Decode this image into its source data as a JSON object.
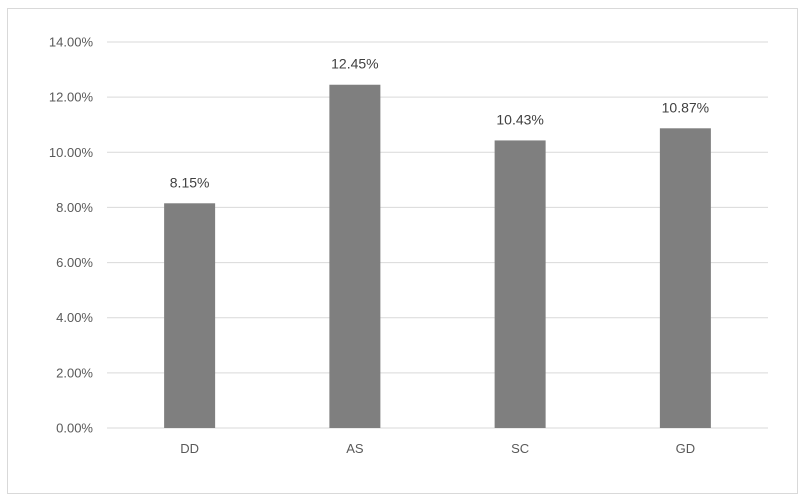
{
  "chart_data": {
    "type": "bar",
    "categories": [
      "DD",
      "AS",
      "SC",
      "GD"
    ],
    "values": [
      8.15,
      12.45,
      10.43,
      10.87
    ],
    "data_labels": [
      "8.15%",
      "12.45%",
      "10.43%",
      "10.87%"
    ],
    "y_ticks": [
      0,
      2,
      4,
      6,
      8,
      10,
      12,
      14
    ],
    "y_tick_labels": [
      "0.00%",
      "2.00%",
      "4.00%",
      "6.00%",
      "8.00%",
      "10.00%",
      "12.00%",
      "14.00%"
    ],
    "ylim": [
      0,
      14
    ],
    "title": "",
    "xlabel": "",
    "ylabel": "",
    "grid": true,
    "legend": "none",
    "bar_color": "#7f7f7f",
    "grid_color": "#d9d9d9"
  }
}
